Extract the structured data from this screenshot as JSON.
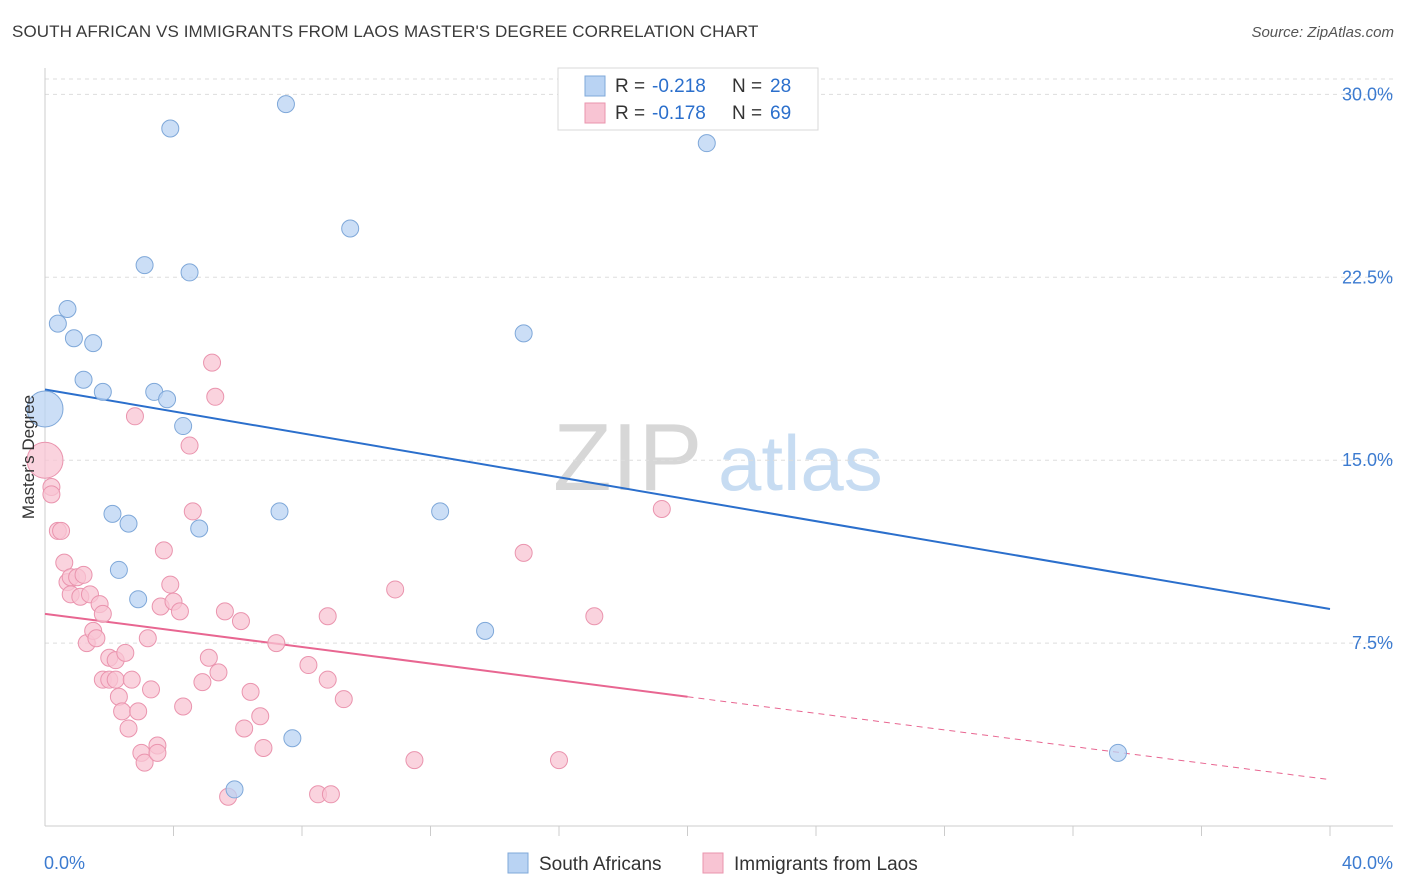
{
  "title": "SOUTH AFRICAN VS IMMIGRANTS FROM LAOS MASTER'S DEGREE CORRELATION CHART",
  "source": "Source: ZipAtlas.com",
  "watermark": {
    "zip": "ZIP",
    "atlas": "atlas"
  },
  "colors": {
    "blue_fill": "#b9d3f3",
    "blue_stroke": "#7fa8d9",
    "blue_line": "#2b6fcc",
    "pink_fill": "#f8c4d3",
    "pink_stroke": "#ea94ae",
    "pink_line": "#e86691",
    "tick_label": "#3c7bd0",
    "grid": "#dddddd"
  },
  "legend": {
    "rows": [
      {
        "r_label": "R = ",
        "r_value": "-0.218",
        "n_label": "N = ",
        "n_value": "28"
      },
      {
        "r_label": "R = ",
        "r_value": "-0.178",
        "n_label": "N = ",
        "n_value": "69"
      }
    ]
  },
  "chart_data": {
    "type": "scatter",
    "title": "SOUTH AFRICAN VS IMMIGRANTS FROM LAOS MASTER'S DEGREE CORRELATION CHART",
    "xlabel": "",
    "ylabel": "Master's Degree",
    "xlim": [
      0,
      40
    ],
    "ylim": [
      0,
      31
    ],
    "x_tick_labels": [
      "0.0%",
      "40.0%"
    ],
    "y_ticks": [
      7.5,
      15.0,
      22.5,
      30.0
    ],
    "y_tick_labels": [
      "7.5%",
      "15.0%",
      "22.5%",
      "30.0%"
    ],
    "series": [
      {
        "name": "South Africans",
        "trend": {
          "x": [
            0,
            40
          ],
          "y": [
            17.9,
            8.9
          ]
        },
        "points": [
          {
            "x": 0.0,
            "y": 17.1,
            "big": true
          },
          {
            "x": 0.4,
            "y": 20.6
          },
          {
            "x": 0.7,
            "y": 21.2
          },
          {
            "x": 0.9,
            "y": 20.0
          },
          {
            "x": 1.2,
            "y": 18.3
          },
          {
            "x": 1.5,
            "y": 19.8
          },
          {
            "x": 1.8,
            "y": 17.8
          },
          {
            "x": 2.1,
            "y": 12.8
          },
          {
            "x": 2.3,
            "y": 10.5
          },
          {
            "x": 2.6,
            "y": 12.4
          },
          {
            "x": 2.9,
            "y": 9.3
          },
          {
            "x": 3.1,
            "y": 23.0
          },
          {
            "x": 3.4,
            "y": 17.8
          },
          {
            "x": 3.8,
            "y": 17.5
          },
          {
            "x": 3.9,
            "y": 28.6
          },
          {
            "x": 4.3,
            "y": 16.4
          },
          {
            "x": 4.5,
            "y": 22.7
          },
          {
            "x": 4.8,
            "y": 12.2
          },
          {
            "x": 5.9,
            "y": 1.5
          },
          {
            "x": 7.3,
            "y": 12.9
          },
          {
            "x": 7.5,
            "y": 29.6
          },
          {
            "x": 7.7,
            "y": 3.6
          },
          {
            "x": 9.5,
            "y": 24.5
          },
          {
            "x": 12.3,
            "y": 12.9
          },
          {
            "x": 13.7,
            "y": 8.0
          },
          {
            "x": 14.9,
            "y": 20.2
          },
          {
            "x": 20.6,
            "y": 28.0
          },
          {
            "x": 33.4,
            "y": 3.0
          }
        ]
      },
      {
        "name": "Immigrants from Laos",
        "trend": {
          "x": [
            0,
            20
          ],
          "y": [
            8.7,
            5.3
          ]
        },
        "trend_extension": {
          "x": [
            20,
            40
          ],
          "y": [
            5.3,
            1.9
          ]
        },
        "points": [
          {
            "x": 0.0,
            "y": 15.0,
            "big": true
          },
          {
            "x": 0.2,
            "y": 13.9
          },
          {
            "x": 0.2,
            "y": 13.6
          },
          {
            "x": 0.4,
            "y": 12.1
          },
          {
            "x": 0.5,
            "y": 12.1
          },
          {
            "x": 0.6,
            "y": 10.8
          },
          {
            "x": 0.7,
            "y": 10.0
          },
          {
            "x": 0.8,
            "y": 9.5
          },
          {
            "x": 0.8,
            "y": 10.2
          },
          {
            "x": 1.0,
            "y": 10.2
          },
          {
            "x": 1.1,
            "y": 9.4
          },
          {
            "x": 1.2,
            "y": 10.3
          },
          {
            "x": 1.3,
            "y": 7.5
          },
          {
            "x": 1.4,
            "y": 9.5
          },
          {
            "x": 1.5,
            "y": 8.0
          },
          {
            "x": 1.6,
            "y": 7.7
          },
          {
            "x": 1.7,
            "y": 9.1
          },
          {
            "x": 1.8,
            "y": 6.0
          },
          {
            "x": 1.8,
            "y": 8.7
          },
          {
            "x": 2.0,
            "y": 6.0
          },
          {
            "x": 2.0,
            "y": 6.9
          },
          {
            "x": 2.2,
            "y": 6.0
          },
          {
            "x": 2.2,
            "y": 6.8
          },
          {
            "x": 2.3,
            "y": 5.3
          },
          {
            "x": 2.4,
            "y": 4.7
          },
          {
            "x": 2.5,
            "y": 7.1
          },
          {
            "x": 2.6,
            "y": 4.0
          },
          {
            "x": 2.7,
            "y": 6.0
          },
          {
            "x": 2.8,
            "y": 16.8
          },
          {
            "x": 2.9,
            "y": 4.7
          },
          {
            "x": 3.0,
            "y": 3.0
          },
          {
            "x": 3.1,
            "y": 2.6
          },
          {
            "x": 3.2,
            "y": 7.7
          },
          {
            "x": 3.3,
            "y": 5.6
          },
          {
            "x": 3.5,
            "y": 3.3
          },
          {
            "x": 3.5,
            "y": 3.0
          },
          {
            "x": 3.6,
            "y": 9.0
          },
          {
            "x": 3.7,
            "y": 11.3
          },
          {
            "x": 3.9,
            "y": 9.9
          },
          {
            "x": 4.0,
            "y": 9.2
          },
          {
            "x": 4.2,
            "y": 8.8
          },
          {
            "x": 4.3,
            "y": 4.9
          },
          {
            "x": 4.5,
            "y": 15.6
          },
          {
            "x": 4.6,
            "y": 12.9
          },
          {
            "x": 4.9,
            "y": 5.9
          },
          {
            "x": 5.1,
            "y": 6.9
          },
          {
            "x": 5.2,
            "y": 19.0
          },
          {
            "x": 5.3,
            "y": 17.6
          },
          {
            "x": 5.4,
            "y": 6.3
          },
          {
            "x": 5.6,
            "y": 8.8
          },
          {
            "x": 5.7,
            "y": 1.2
          },
          {
            "x": 6.1,
            "y": 8.4
          },
          {
            "x": 6.2,
            "y": 4.0
          },
          {
            "x": 6.4,
            "y": 5.5
          },
          {
            "x": 6.7,
            "y": 4.5
          },
          {
            "x": 6.8,
            "y": 3.2
          },
          {
            "x": 7.2,
            "y": 7.5
          },
          {
            "x": 8.2,
            "y": 6.6
          },
          {
            "x": 8.5,
            "y": 1.3
          },
          {
            "x": 8.8,
            "y": 8.6
          },
          {
            "x": 8.8,
            "y": 6.0
          },
          {
            "x": 8.9,
            "y": 1.3
          },
          {
            "x": 9.3,
            "y": 5.2
          },
          {
            "x": 10.9,
            "y": 9.7
          },
          {
            "x": 11.5,
            "y": 2.7
          },
          {
            "x": 14.9,
            "y": 11.2
          },
          {
            "x": 16.0,
            "y": 2.7
          },
          {
            "x": 17.1,
            "y": 8.6
          },
          {
            "x": 19.2,
            "y": 13.0
          }
        ]
      }
    ]
  }
}
